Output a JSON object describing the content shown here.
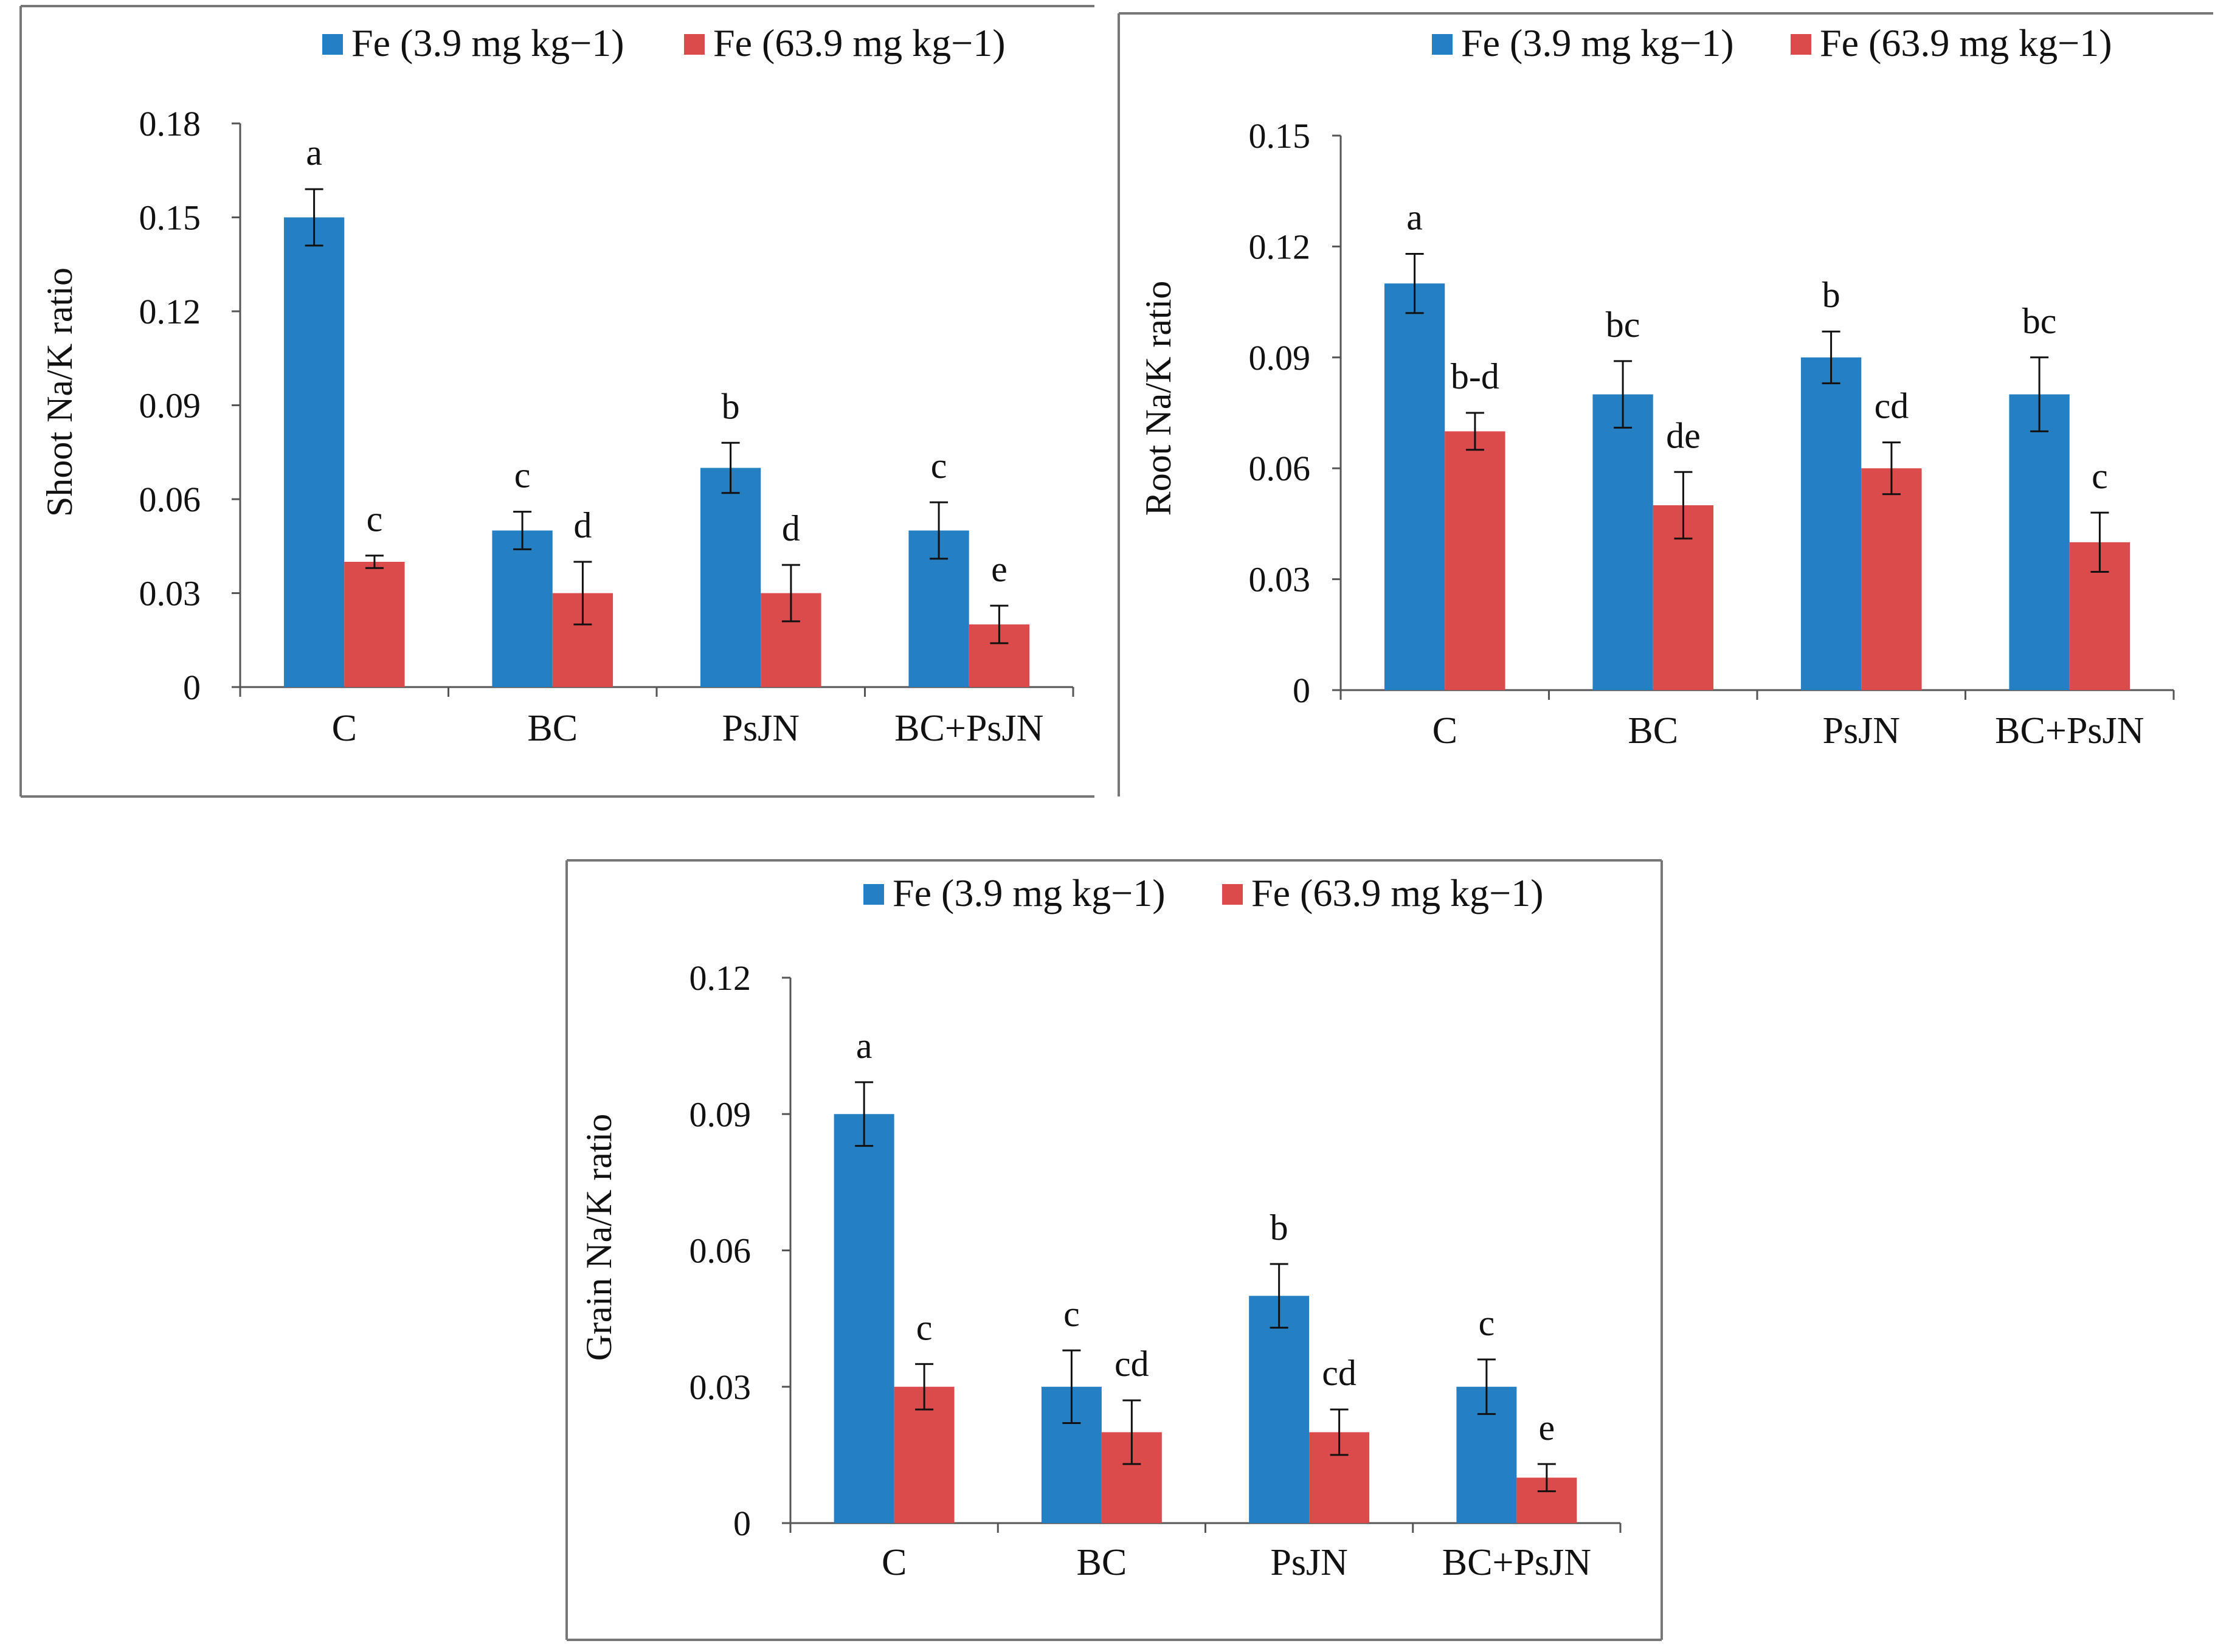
{
  "legend_labels": [
    "Fe (3.9 mg kg−1)",
    "Fe (63.9 mg kg−1)"
  ],
  "colors": {
    "series1": "#2580C3",
    "series2": "#DC4B4B",
    "axis": "#555555",
    "frame": "#777777"
  },
  "chart_data": [
    {
      "type": "bar",
      "ylabel": "Shoot Na/K ratio",
      "categories": [
        "C",
        "BC",
        "PsJN",
        "BC+PsJN"
      ],
      "ylim": [
        0,
        0.18
      ],
      "yticks": [
        "0",
        "0.03",
        "0.06",
        "0.09",
        "0.12",
        "0.15",
        "0.18"
      ],
      "series": [
        {
          "name": "Fe (3.9 mg kg−1)",
          "values": [
            0.15,
            0.05,
            0.07,
            0.05
          ],
          "errors": [
            0.009,
            0.006,
            0.008,
            0.009
          ],
          "letters": [
            "a",
            "c",
            "b",
            "c"
          ]
        },
        {
          "name": "Fe (63.9 mg kg−1)",
          "values": [
            0.04,
            0.03,
            0.03,
            0.02
          ],
          "errors": [
            0.002,
            0.01,
            0.009,
            0.006
          ],
          "letters": [
            "c",
            "d",
            "d",
            "e"
          ]
        }
      ]
    },
    {
      "type": "bar",
      "ylabel": "Root Na/K ratio",
      "categories": [
        "C",
        "BC",
        "PsJN",
        "BC+PsJN"
      ],
      "ylim": [
        0,
        0.15
      ],
      "yticks": [
        "0",
        "0.03",
        "0.06",
        "0.09",
        "0.12",
        "0.15"
      ],
      "series": [
        {
          "name": "Fe (3.9 mg kg−1)",
          "values": [
            0.11,
            0.08,
            0.09,
            0.08
          ],
          "errors": [
            0.008,
            0.009,
            0.007,
            0.01
          ],
          "letters": [
            "a",
            "bc",
            "b",
            "bc"
          ]
        },
        {
          "name": "Fe (63.9 mg kg−1)",
          "values": [
            0.07,
            0.05,
            0.06,
            0.04
          ],
          "errors": [
            0.005,
            0.009,
            0.007,
            0.008
          ],
          "letters": [
            "b-d",
            "de",
            "cd",
            "c"
          ]
        }
      ]
    },
    {
      "type": "bar",
      "ylabel": "Grain Na/K ratio",
      "categories": [
        "C",
        "BC",
        "PsJN",
        "BC+PsJN"
      ],
      "ylim": [
        0,
        0.12
      ],
      "yticks": [
        "0",
        "0.03",
        "0.06",
        "0.09",
        "0.12"
      ],
      "series": [
        {
          "name": "Fe (3.9 mg kg−1)",
          "values": [
            0.09,
            0.03,
            0.05,
            0.03
          ],
          "errors": [
            0.007,
            0.008,
            0.007,
            0.006
          ],
          "letters": [
            "a",
            "c",
            "b",
            "c"
          ]
        },
        {
          "name": "Fe (63.9 mg kg−1)",
          "values": [
            0.03,
            0.02,
            0.02,
            0.01
          ],
          "errors": [
            0.005,
            0.007,
            0.005,
            0.003
          ],
          "letters": [
            "c",
            "cd",
            "cd",
            "e"
          ]
        }
      ]
    }
  ]
}
